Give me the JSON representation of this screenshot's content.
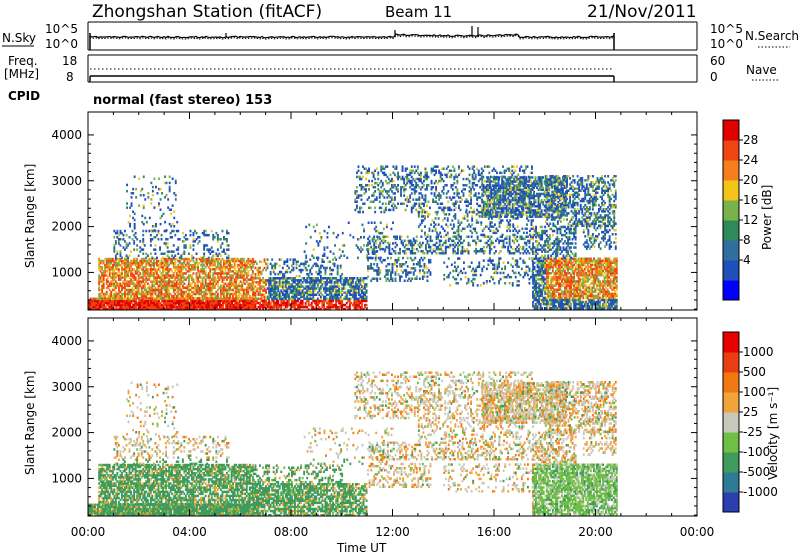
{
  "header": {
    "station": "Zhongshan Station (fitACF)",
    "beam": "Beam 11",
    "date": "21/Nov/2011"
  },
  "top_panels": {
    "nsky_label": "N.Sky",
    "nsearch_label": "N.Search",
    "nsky_ticks": [
      "10^5",
      "10^0"
    ],
    "nsky_right_ticks": [
      "10^5",
      "10^0"
    ],
    "freq_label": "Freq.",
    "freq_unit": "[MHz]",
    "freq_ticks": [
      "18",
      "8"
    ],
    "nave_label": "Nave",
    "nave_ticks": [
      "60",
      "0"
    ],
    "cpid_label": "CPID",
    "cpid_text": "normal (fast stereo) 153"
  },
  "chart_data": [
    {
      "type": "heatmap",
      "name": "power",
      "ylabel": "Slant Range [km]",
      "xlabel": "",
      "yticks": [
        "4000",
        "3000",
        "2000",
        "1000"
      ],
      "xlim": [
        0,
        24
      ],
      "ylim": [
        180,
        4500
      ],
      "colorbar": {
        "label": "Power [dB]",
        "ticks": [
          "28",
          "24",
          "20",
          "16",
          "12",
          "8",
          "4"
        ],
        "colors": [
          "#0000ff",
          "#1f4fb8",
          "#2f6fa0",
          "#2f8a5a",
          "#78b24a",
          "#f2c518",
          "#f57f1b",
          "#ee4512",
          "#e10000"
        ]
      }
    },
    {
      "type": "heatmap",
      "name": "velocity",
      "ylabel": "Slant Range [km]",
      "xlabel": "Time UT",
      "yticks": [
        "4000",
        "3000",
        "2000",
        "1000"
      ],
      "xticks": [
        "00:00",
        "04:00",
        "08:00",
        "12:00",
        "16:00",
        "20:00",
        "00:00"
      ],
      "xlim": [
        0,
        24
      ],
      "ylim": [
        180,
        4500
      ],
      "colorbar": {
        "label": "Velocity [m s⁻¹]",
        "ticks": [
          "1000",
          "500",
          "100",
          "25",
          "-25",
          "-100",
          "-500",
          "-1000"
        ],
        "colors": [
          "#2b3fb0",
          "#2f7a95",
          "#3f9a5e",
          "#6fbf45",
          "#c8c8bd",
          "#f0a43a",
          "#f07a10",
          "#e83e12",
          "#e60000"
        ]
      }
    }
  ]
}
